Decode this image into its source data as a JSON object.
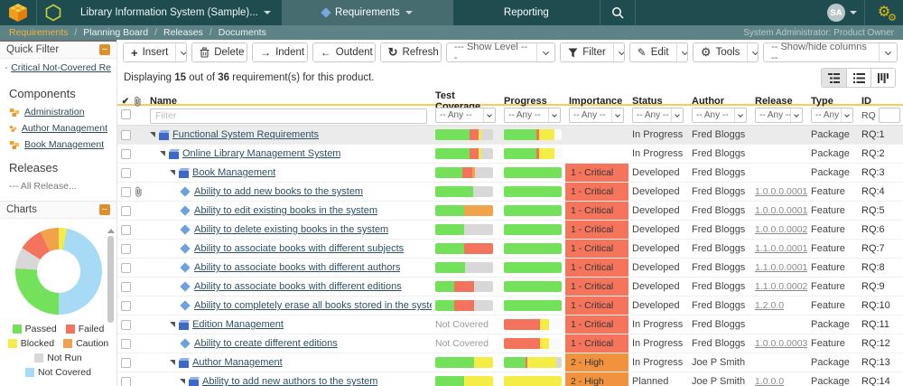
{
  "palette": {
    "green": "#73e25a",
    "red": "#f4735c",
    "yellow": "#f3ed45",
    "orange": "#f2a24a",
    "gray": "#d8d8d8",
    "blue": "#a6daf5",
    "white": "#fafafa",
    "critical": "#f4745c",
    "high": "#f0923e",
    "accent": "#dd8f2d"
  },
  "topbar": {
    "product_title": "Library Information System (Sample)...",
    "tab_requirements": "Requirements",
    "tab_reporting": "Reporting",
    "avatar_initials": "SA"
  },
  "subbar": {
    "breadcrumb": [
      "Requirements",
      "Planning Board",
      "Releases",
      "Documents"
    ],
    "user_role": "System Administrator: Product Owner"
  },
  "sidebar": {
    "quick_filter_title": "Quick Filter",
    "quick_filter_item": "Critical Not-Covered Re",
    "components_title": "Components",
    "component_items": [
      "Administration",
      "Author Management",
      "Book Management"
    ],
    "releases_title": "Releases",
    "releases_value": "--- All Release...",
    "charts_title": "Charts"
  },
  "chart_data": {
    "type": "pie",
    "donut": true,
    "legend_position": "bottom",
    "slices": [
      {
        "label": "Blocked",
        "value": 3,
        "color_key": "yellow"
      },
      {
        "label": "Not Covered",
        "value": 47,
        "color_key": "blue"
      },
      {
        "label": "Passed",
        "value": 26,
        "color_key": "green"
      },
      {
        "label": "Not Run",
        "value": 8,
        "color_key": "gray"
      },
      {
        "label": "Failed",
        "value": 9,
        "color_key": "red"
      },
      {
        "label": "Caution",
        "value": 7,
        "color_key": "orange"
      }
    ],
    "legend": [
      {
        "label": "Passed",
        "color_key": "green"
      },
      {
        "label": "Failed",
        "color_key": "red"
      },
      {
        "label": "Blocked",
        "color_key": "yellow"
      },
      {
        "label": "Caution",
        "color_key": "orange"
      },
      {
        "label": "Not Run",
        "color_key": "gray"
      },
      {
        "label": "Not Covered",
        "color_key": "blue"
      }
    ]
  },
  "toolbar": {
    "insert": "Insert",
    "delete": "Delete",
    "indent": "Indent",
    "outdent": "Outdent",
    "refresh": "Refresh",
    "show_level": "--- Show Level ---",
    "filter": "Filter",
    "edit": "Edit",
    "tools": "Tools",
    "show_hide_columns": "-- Show/hide columns --"
  },
  "summary": {
    "prefix": "Displaying",
    "shown": "15",
    "mid": "out of",
    "total": "36",
    "suffix": "requirement(s) for this product."
  },
  "table": {
    "headers": {
      "name": "Name",
      "coverage": "Test Coverage",
      "progress": "Progress",
      "importance": "Importance",
      "status": "Status",
      "author": "Author",
      "release": "Release",
      "type": "Type",
      "id": "ID"
    },
    "filter_placeholder": "Filter",
    "any_option": "-- Any --",
    "id_filter_prefix": "RQ",
    "rows": [
      {
        "indent": 0,
        "icon": "package",
        "caret": true,
        "attachment": false,
        "selected": true,
        "name": "Functional System Requirements",
        "coverage": [
          [
            "green",
            60
          ],
          [
            "red",
            15
          ],
          [
            "yellow",
            5
          ],
          [
            "gray",
            20
          ]
        ],
        "progress": [
          [
            "green",
            57
          ],
          [
            "red",
            4
          ],
          [
            "yellow",
            27
          ],
          [
            "white",
            12
          ]
        ],
        "importance": "",
        "importance_key": "",
        "status": "In Progress",
        "author": "Fred Bloggs",
        "release": "",
        "type": "Package",
        "id": "RQ:1"
      },
      {
        "indent": 1,
        "icon": "package",
        "caret": true,
        "attachment": false,
        "selected": false,
        "name": "Online Library Management System",
        "coverage": [
          [
            "green",
            60
          ],
          [
            "red",
            15
          ],
          [
            "yellow",
            5
          ],
          [
            "gray",
            20
          ]
        ],
        "progress": [
          [
            "green",
            57
          ],
          [
            "red",
            4
          ],
          [
            "yellow",
            27
          ],
          [
            "white",
            12
          ]
        ],
        "importance": "",
        "importance_key": "",
        "status": "In Progress",
        "author": "Fred Bloggs",
        "release": "",
        "type": "Package",
        "id": "RQ:2"
      },
      {
        "indent": 2,
        "icon": "package",
        "caret": true,
        "attachment": false,
        "selected": false,
        "name": "Book Management",
        "coverage": [
          [
            "green",
            47
          ],
          [
            "red",
            17
          ],
          [
            "orange",
            5
          ],
          [
            "gray",
            31
          ]
        ],
        "progress": [
          [
            "green",
            100
          ]
        ],
        "importance": "1 - Critical",
        "importance_key": "critical",
        "status": "Developed",
        "author": "Fred Bloggs",
        "release": "",
        "type": "Package",
        "id": "RQ:3"
      },
      {
        "indent": 3,
        "icon": "diamond",
        "caret": false,
        "attachment": true,
        "selected": false,
        "name": "Ability to add new books to the system",
        "coverage": [
          [
            "green",
            66
          ],
          [
            "gray",
            34
          ]
        ],
        "progress": [
          [
            "green",
            100
          ]
        ],
        "importance": "1 - Critical",
        "importance_key": "critical",
        "status": "Developed",
        "author": "Fred Bloggs",
        "release": "1.0.0.0.0001",
        "type": "Feature",
        "id": "RQ:4"
      },
      {
        "indent": 3,
        "icon": "diamond",
        "caret": false,
        "attachment": false,
        "selected": false,
        "name": "Ability to edit existing books in the system",
        "coverage": [
          [
            "green",
            50
          ],
          [
            "orange",
            50
          ]
        ],
        "progress": [
          [
            "green",
            100
          ]
        ],
        "importance": "1 - Critical",
        "importance_key": "critical",
        "status": "Developed",
        "author": "Fred Bloggs",
        "release": "1.0.0.0.0001",
        "type": "Feature",
        "id": "RQ:5"
      },
      {
        "indent": 3,
        "icon": "diamond",
        "caret": false,
        "attachment": false,
        "selected": false,
        "name": "Ability to delete existing books in the system",
        "coverage": [
          [
            "green",
            50
          ],
          [
            "gray",
            50
          ]
        ],
        "progress": [
          [
            "green",
            100
          ]
        ],
        "importance": "1 - Critical",
        "importance_key": "critical",
        "status": "Developed",
        "author": "Fred Bloggs",
        "release": "1.0.0.0.0002",
        "type": "Feature",
        "id": "RQ:6"
      },
      {
        "indent": 3,
        "icon": "diamond",
        "caret": false,
        "attachment": false,
        "selected": false,
        "name": "Ability to associate books with different subjects",
        "coverage": [
          [
            "green",
            50
          ],
          [
            "red",
            50
          ]
        ],
        "progress": [
          [
            "green",
            100
          ]
        ],
        "importance": "1 - Critical",
        "importance_key": "critical",
        "status": "Developed",
        "author": "Fred Bloggs",
        "release": "1.1.0.0.0001",
        "type": "Feature",
        "id": "RQ:7"
      },
      {
        "indent": 3,
        "icon": "diamond",
        "caret": false,
        "attachment": false,
        "selected": false,
        "name": "Ability to associate books with different authors",
        "coverage": [
          [
            "green",
            52
          ],
          [
            "gray",
            48
          ]
        ],
        "progress": [
          [
            "green",
            100
          ]
        ],
        "importance": "1 - Critical",
        "importance_key": "critical",
        "status": "Developed",
        "author": "Fred Bloggs",
        "release": "1.1.0.0.0001",
        "type": "Feature",
        "id": "RQ:8"
      },
      {
        "indent": 3,
        "icon": "diamond",
        "caret": false,
        "attachment": false,
        "selected": false,
        "name": "Ability to associate books with different editions",
        "coverage": [
          [
            "green",
            33
          ],
          [
            "red",
            34
          ],
          [
            "gray",
            33
          ]
        ],
        "progress": [
          [
            "green",
            100
          ]
        ],
        "importance": "1 - Critical",
        "importance_key": "critical",
        "status": "Developed",
        "author": "Fred Bloggs",
        "release": "1.1.0.0.0002",
        "type": "Feature",
        "id": "RQ:9"
      },
      {
        "indent": 3,
        "icon": "diamond",
        "caret": false,
        "attachment": false,
        "selected": false,
        "name": "Ability to completely erase all books stored in the system with one click",
        "coverage": [
          [
            "green",
            33
          ],
          [
            "red",
            34
          ],
          [
            "gray",
            33
          ]
        ],
        "progress": [
          [
            "green",
            100
          ]
        ],
        "importance": "1 - Critical",
        "importance_key": "critical",
        "status": "Developed",
        "author": "Fred Bloggs",
        "release": "1.2.0.0",
        "type": "Feature",
        "id": "RQ:10"
      },
      {
        "indent": 2,
        "icon": "package",
        "caret": true,
        "attachment": false,
        "selected": false,
        "name": "Edition Management",
        "coverage_text": "Not Covered",
        "progress": [
          [
            "red",
            62
          ],
          [
            "yellow",
            16
          ],
          [
            "white",
            22
          ]
        ],
        "importance": "1 - Critical",
        "importance_key": "critical",
        "status": "In Progress",
        "author": "Fred Bloggs",
        "release": "",
        "type": "Package",
        "id": "RQ:11"
      },
      {
        "indent": 3,
        "icon": "diamond",
        "caret": false,
        "attachment": false,
        "selected": false,
        "name": "Ability to create different editions",
        "coverage_text": "Not Covered",
        "progress": [
          [
            "red",
            62
          ],
          [
            "yellow",
            16
          ],
          [
            "white",
            22
          ]
        ],
        "importance": "1 - Critical",
        "importance_key": "critical",
        "status": "In Progress",
        "author": "Fred Bloggs",
        "release": "1.0.0.0.0003",
        "type": "Feature",
        "id": "RQ:12"
      },
      {
        "indent": 2,
        "icon": "package",
        "caret": true,
        "attachment": false,
        "selected": false,
        "name": "Author Management",
        "coverage": [
          [
            "green",
            67
          ],
          [
            "yellow",
            33
          ]
        ],
        "progress": [
          [
            "green",
            37
          ],
          [
            "red",
            4
          ],
          [
            "yellow",
            49
          ],
          [
            "gray",
            10
          ]
        ],
        "importance": "2 - High",
        "importance_key": "high",
        "status": "In Progress",
        "author": "Joe P Smith",
        "release": "",
        "type": "Package",
        "id": "RQ:13"
      },
      {
        "indent": 3,
        "icon": "package",
        "caret": true,
        "attachment": false,
        "selected": false,
        "name": "Ability to add new authors to the system",
        "coverage": [
          [
            "green",
            50
          ],
          [
            "yellow",
            50
          ]
        ],
        "progress": [
          [
            "yellow",
            100
          ]
        ],
        "importance": "2 - High",
        "importance_key": "high",
        "status": "Planned",
        "author": "Joe P Smith",
        "release": "1.0.0.0",
        "type": "Package",
        "id": "RQ:14"
      }
    ]
  }
}
